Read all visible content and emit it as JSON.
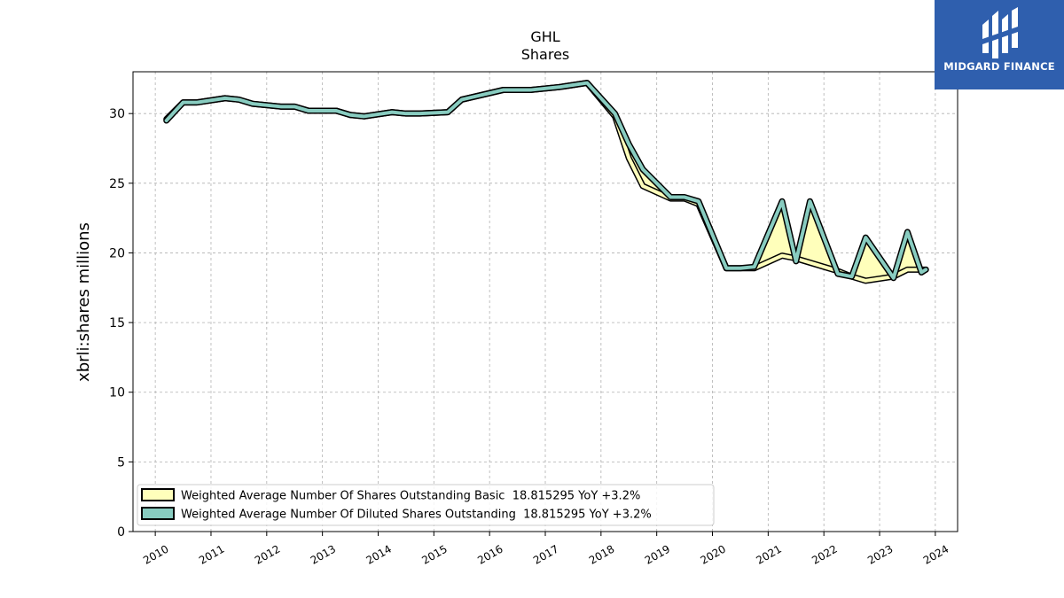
{
  "chart_data": {
    "type": "line",
    "title": "GHL",
    "subtitle": "Shares",
    "ylabel": "xbrli:shares millions",
    "xlabel": "",
    "ylim": [
      0,
      33
    ],
    "xlim": [
      2009.6,
      2024.4
    ],
    "yticks": [
      "0",
      "5",
      "10",
      "15",
      "20",
      "25",
      "30"
    ],
    "xticks": [
      "2010",
      "2011",
      "2012",
      "2013",
      "2014",
      "2015",
      "2016",
      "2017",
      "2018",
      "2019",
      "2020",
      "2021",
      "2022",
      "2023",
      "2024"
    ],
    "grid": true,
    "legend_position": "lower-left",
    "series": [
      {
        "name": "Weighted Average Number Of Shares Outstanding Basic  18.815295 YoY +3.2%",
        "color": "#ffffbb",
        "x": [
          2010.2,
          2010.5,
          2010.75,
          2011.25,
          2011.5,
          2011.75,
          2012.25,
          2012.5,
          2012.75,
          2013.25,
          2013.5,
          2013.75,
          2014.25,
          2014.5,
          2014.75,
          2015.25,
          2015.5,
          2016.25,
          2016.5,
          2016.75,
          2017.25,
          2017.75,
          2018.25,
          2018.5,
          2018.75,
          2019.25,
          2019.5,
          2019.75,
          2020.25,
          2020.5,
          2020.75,
          2021.25,
          2021.5,
          2021.75,
          2022.25,
          2022.5,
          2022.75,
          2023.25,
          2023.5,
          2023.75,
          2023.83
        ],
        "y": [
          29.6,
          30.8,
          30.8,
          31.1,
          31.0,
          30.7,
          30.5,
          30.5,
          30.2,
          30.2,
          29.9,
          29.8,
          30.1,
          30.0,
          30.0,
          30.1,
          31.0,
          31.7,
          31.7,
          31.7,
          31.9,
          32.2,
          29.8,
          26.8,
          24.8,
          23.9,
          23.9,
          23.5,
          18.9,
          18.9,
          18.9,
          19.8,
          19.6,
          19.3,
          18.7,
          18.3,
          18.0,
          18.3,
          18.8,
          18.8,
          18.8
        ]
      },
      {
        "name": "Weighted Average Number Of Diluted Shares Outstanding  18.815295 YoY +3.2%",
        "color": "#88ccc0",
        "x": [
          2010.2,
          2010.5,
          2010.75,
          2011.25,
          2011.5,
          2011.75,
          2012.25,
          2012.5,
          2012.75,
          2013.25,
          2013.5,
          2013.75,
          2014.25,
          2014.5,
          2014.75,
          2015.25,
          2015.5,
          2016.25,
          2016.5,
          2016.75,
          2017.25,
          2017.75,
          2018.25,
          2018.5,
          2018.75,
          2019.25,
          2019.5,
          2019.75,
          2020.25,
          2020.5,
          2020.75,
          2021.25,
          2021.5,
          2021.75,
          2022.25,
          2022.5,
          2022.75,
          2023.25,
          2023.5,
          2023.75,
          2023.83
        ],
        "y": [
          29.5,
          30.8,
          30.8,
          31.1,
          31.0,
          30.7,
          30.5,
          30.5,
          30.2,
          30.2,
          29.9,
          29.8,
          30.1,
          30.0,
          30.0,
          30.1,
          31.0,
          31.7,
          31.7,
          31.7,
          31.9,
          32.2,
          30.0,
          27.8,
          26.0,
          24.0,
          24.0,
          23.7,
          18.9,
          18.9,
          19.0,
          23.7,
          19.4,
          23.7,
          18.5,
          18.3,
          21.1,
          18.2,
          21.5,
          18.6,
          18.8
        ]
      }
    ]
  },
  "logo": {
    "text": "MIDGARD FINANCE",
    "background": "#2f5fae"
  }
}
